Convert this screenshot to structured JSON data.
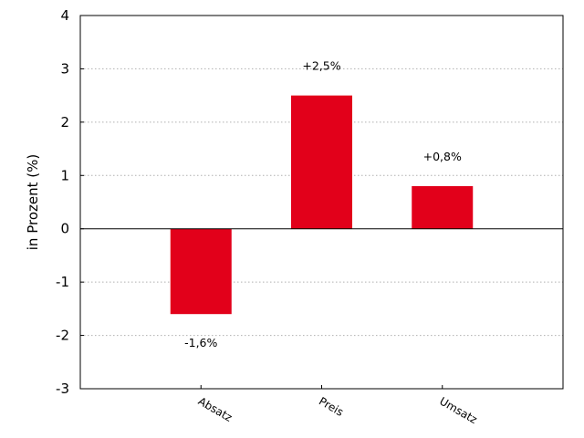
{
  "chart_data": {
    "type": "bar",
    "categories": [
      "Absatz",
      "Preis",
      "Umsatz"
    ],
    "values": [
      -1.6,
      2.5,
      0.8
    ],
    "data_labels": [
      "-1,6%",
      "+2,5%",
      "+0,8%"
    ],
    "title": "",
    "xlabel": "",
    "ylabel": "in Prozent (%)",
    "ylim": [
      -3,
      4
    ],
    "yticks": [
      -3,
      -2,
      -1,
      0,
      1,
      2,
      3,
      4
    ],
    "grid": "horizontal dotted",
    "bar_color": "#e2001a",
    "x_tick_rotation": "-30deg"
  }
}
